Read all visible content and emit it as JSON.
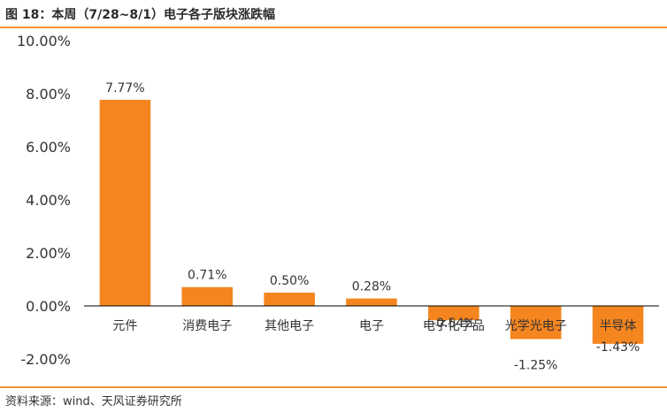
{
  "figure": {
    "title": "图 18：本周（7/28~8/1）电子各子版块涨跌幅",
    "source": "资料来源：wind、天风证券研究所"
  },
  "colors": {
    "bar": "#f5861f",
    "accent_rule": "#f4923a",
    "axis": "#000000",
    "text": "#333333"
  },
  "chart_data": {
    "type": "bar",
    "title": "",
    "xlabel": "",
    "ylabel": "",
    "categories": [
      "元件",
      "消费电子",
      "其他电子",
      "电子",
      "电子化学品",
      "光学光电子",
      "半导体"
    ],
    "values": [
      7.77,
      0.71,
      0.5,
      0.28,
      -0.54,
      -1.25,
      -1.43
    ],
    "value_labels": [
      "7.77%",
      "0.71%",
      "0.50%",
      "0.28%",
      "-0.54%",
      "-1.25%",
      "-1.43%"
    ],
    "ylim": [
      -2,
      10
    ],
    "yticks": [
      10,
      8,
      6,
      4,
      2,
      0,
      -2
    ],
    "ytick_labels": [
      "10.00%",
      "8.00%",
      "6.00%",
      "4.00%",
      "2.00%",
      "0.00%",
      "-2.00%"
    ],
    "grid": false,
    "legend": "none"
  }
}
